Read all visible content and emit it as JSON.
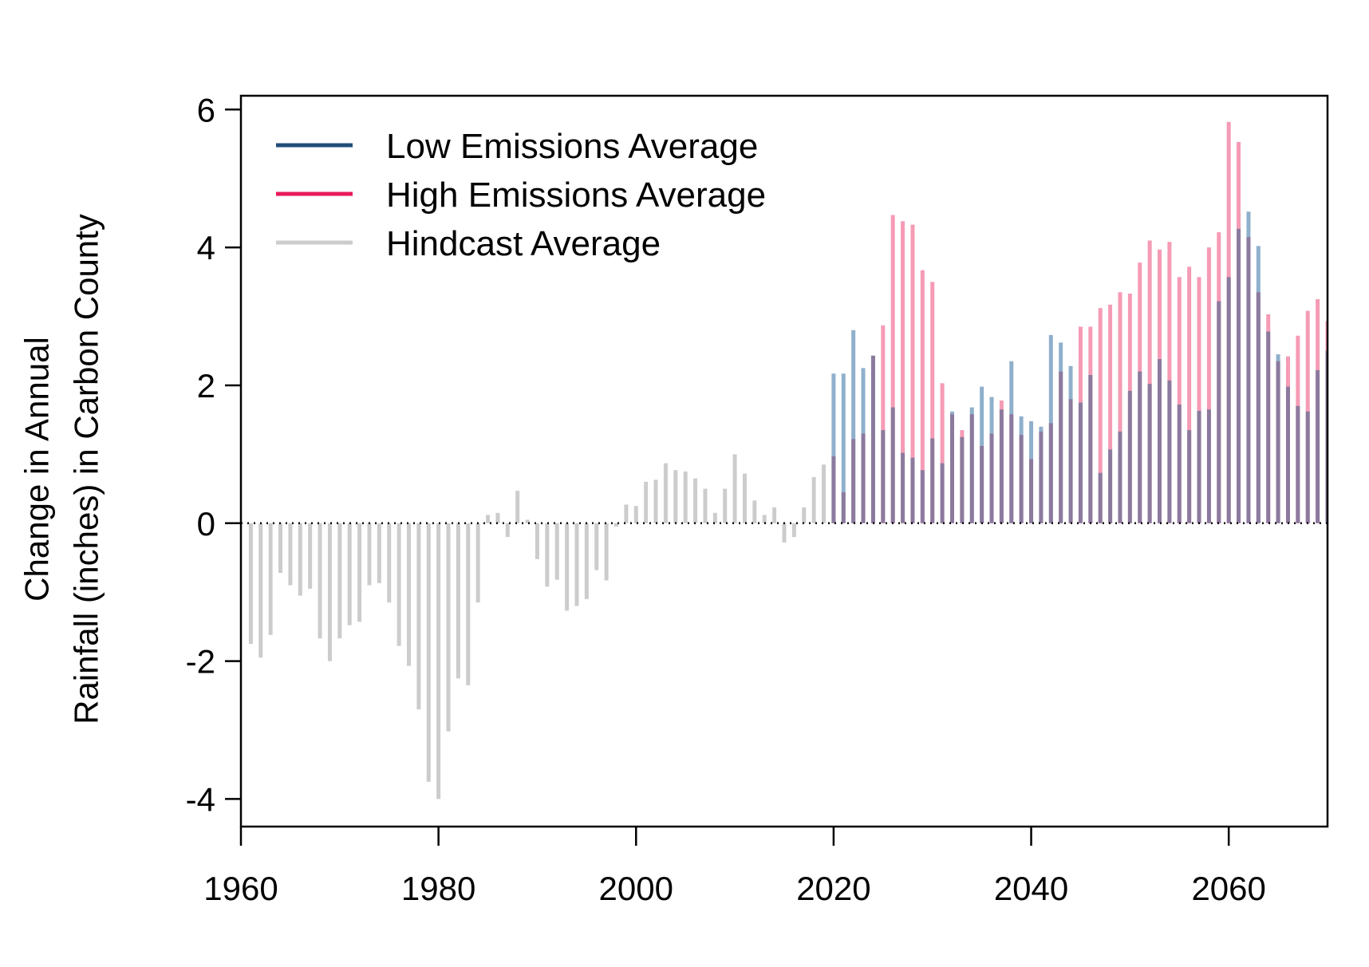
{
  "chart_data": {
    "type": "bar",
    "title": "",
    "ylabel_lines": [
      "Change in Annual",
      "Rainfall (inches) in Carbon County"
    ],
    "xlabel": "",
    "xlim": [
      1960,
      2070
    ],
    "ylim": [
      -4.4,
      6.2
    ],
    "x_ticks": [
      1960,
      1980,
      2000,
      2020,
      2040,
      2060
    ],
    "y_ticks": [
      -4,
      -2,
      0,
      2,
      4,
      6
    ],
    "y_tick_labels": [
      "-4",
      "-2",
      "0",
      "2",
      "4",
      "6"
    ],
    "grid": false,
    "zero_line": "dotted",
    "legend_position": "top-left",
    "colors": {
      "low": "#1f4e79",
      "low_bar": "#8fb0cc",
      "high": "#e8195a",
      "high_bar": "#f59bb5",
      "overlap_bar": "#8c7a9e",
      "hindcast": "#cccccc"
    },
    "legend": [
      {
        "label": "Low Emissions Average",
        "color": "#1f4e79"
      },
      {
        "label": "High Emissions Average",
        "color": "#e8195a"
      },
      {
        "label": "Hindcast Average",
        "color": "#cccccc"
      }
    ],
    "series": [
      {
        "name": "Hindcast Average",
        "x": [
          1961,
          1962,
          1963,
          1964,
          1965,
          1966,
          1967,
          1968,
          1969,
          1970,
          1971,
          1972,
          1973,
          1974,
          1975,
          1976,
          1977,
          1978,
          1979,
          1980,
          1981,
          1982,
          1983,
          1984,
          1985,
          1986,
          1987,
          1988,
          1989,
          1990,
          1991,
          1992,
          1993,
          1994,
          1995,
          1996,
          1997,
          1998,
          1999,
          2000,
          2001,
          2002,
          2003,
          2004,
          2005,
          2006,
          2007,
          2008,
          2009,
          2010,
          2011,
          2012,
          2013,
          2014,
          2015,
          2016,
          2017,
          2018,
          2019
        ],
        "values": [
          -1.75,
          -1.95,
          -1.62,
          -0.72,
          -0.9,
          -1.05,
          -0.95,
          -1.67,
          -2.0,
          -1.67,
          -1.48,
          -1.43,
          -0.9,
          -0.87,
          -1.15,
          -1.78,
          -2.07,
          -2.7,
          -3.75,
          -4.0,
          -3.02,
          -2.25,
          -2.35,
          -1.15,
          0.12,
          0.15,
          -0.2,
          0.47,
          0.05,
          -0.52,
          -0.92,
          -0.82,
          -1.27,
          -1.2,
          -1.1,
          -0.68,
          -0.83,
          -0.05,
          0.27,
          0.25,
          0.6,
          0.63,
          0.87,
          0.77,
          0.75,
          0.65,
          0.5,
          0.15,
          0.5,
          1.0,
          0.72,
          0.33,
          0.12,
          0.23,
          -0.28,
          -0.2,
          0.23,
          0.67,
          0.85
        ]
      },
      {
        "name": "Low Emissions Average",
        "x": [
          2020,
          2021,
          2022,
          2023,
          2024,
          2025,
          2026,
          2027,
          2028,
          2029,
          2030,
          2031,
          2032,
          2033,
          2034,
          2035,
          2036,
          2037,
          2038,
          2039,
          2040,
          2041,
          2042,
          2043,
          2044,
          2045,
          2046,
          2047,
          2048,
          2049,
          2050,
          2051,
          2052,
          2053,
          2054,
          2055,
          2056,
          2057,
          2058,
          2059,
          2060,
          2061,
          2062,
          2063,
          2064,
          2065,
          2066,
          2067,
          2068,
          2069,
          2070
        ],
        "values": [
          2.17,
          2.17,
          2.8,
          2.25,
          2.43,
          1.35,
          1.68,
          1.02,
          0.95,
          0.77,
          1.23,
          0.87,
          1.62,
          1.25,
          1.68,
          1.98,
          1.83,
          1.65,
          2.35,
          1.55,
          1.48,
          1.4,
          2.73,
          2.62,
          2.28,
          1.75,
          2.15,
          0.73,
          1.07,
          1.33,
          1.92,
          2.2,
          2.02,
          2.38,
          2.07,
          1.72,
          1.35,
          1.63,
          1.65,
          3.22,
          3.57,
          4.27,
          4.52,
          4.02,
          2.78,
          2.45,
          1.98,
          1.7,
          1.62,
          2.22,
          2.5
        ]
      },
      {
        "name": "High Emissions Average",
        "x": [
          2020,
          2021,
          2022,
          2023,
          2024,
          2025,
          2026,
          2027,
          2028,
          2029,
          2030,
          2031,
          2032,
          2033,
          2034,
          2035,
          2036,
          2037,
          2038,
          2039,
          2040,
          2041,
          2042,
          2043,
          2044,
          2045,
          2046,
          2047,
          2048,
          2049,
          2050,
          2051,
          2052,
          2053,
          2054,
          2055,
          2056,
          2057,
          2058,
          2059,
          2060,
          2061,
          2062,
          2063,
          2064,
          2065,
          2066,
          2067,
          2068,
          2069,
          2070
        ],
        "values": [
          0.97,
          0.45,
          1.22,
          1.3,
          2.43,
          2.87,
          4.47,
          4.38,
          4.33,
          3.67,
          3.5,
          2.03,
          1.58,
          1.35,
          1.58,
          1.12,
          1.3,
          1.78,
          1.58,
          1.28,
          0.93,
          1.33,
          1.45,
          2.2,
          1.8,
          2.85,
          2.85,
          3.12,
          3.17,
          3.35,
          3.33,
          3.78,
          4.1,
          3.97,
          4.08,
          3.57,
          3.72,
          3.57,
          4.0,
          4.22,
          5.82,
          5.53,
          4.15,
          3.35,
          3.03,
          2.35,
          2.42,
          2.72,
          3.08,
          3.25,
          2.93
        ]
      }
    ]
  }
}
